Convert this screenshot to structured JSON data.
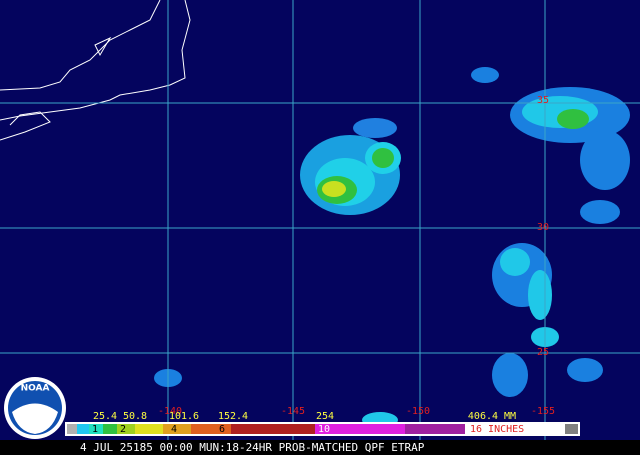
{
  "map": {
    "lat_labels": [
      "35",
      "30",
      "25"
    ],
    "lon_labels": [
      "-140",
      "-145",
      "-150",
      "-155"
    ],
    "legend": {
      "mm_labels": [
        "25.4",
        "50.8",
        "101.6",
        "152.4",
        "254",
        "406.4 MM"
      ],
      "inch_labels": [
        "1",
        "2",
        "4",
        "6",
        "10",
        "16 INCHES"
      ]
    },
    "caption": "4 JUL 25185 00:00 MUN:18-24HR PROB-MATCHED QPF ETRAP",
    "logo": "NOAA"
  }
}
